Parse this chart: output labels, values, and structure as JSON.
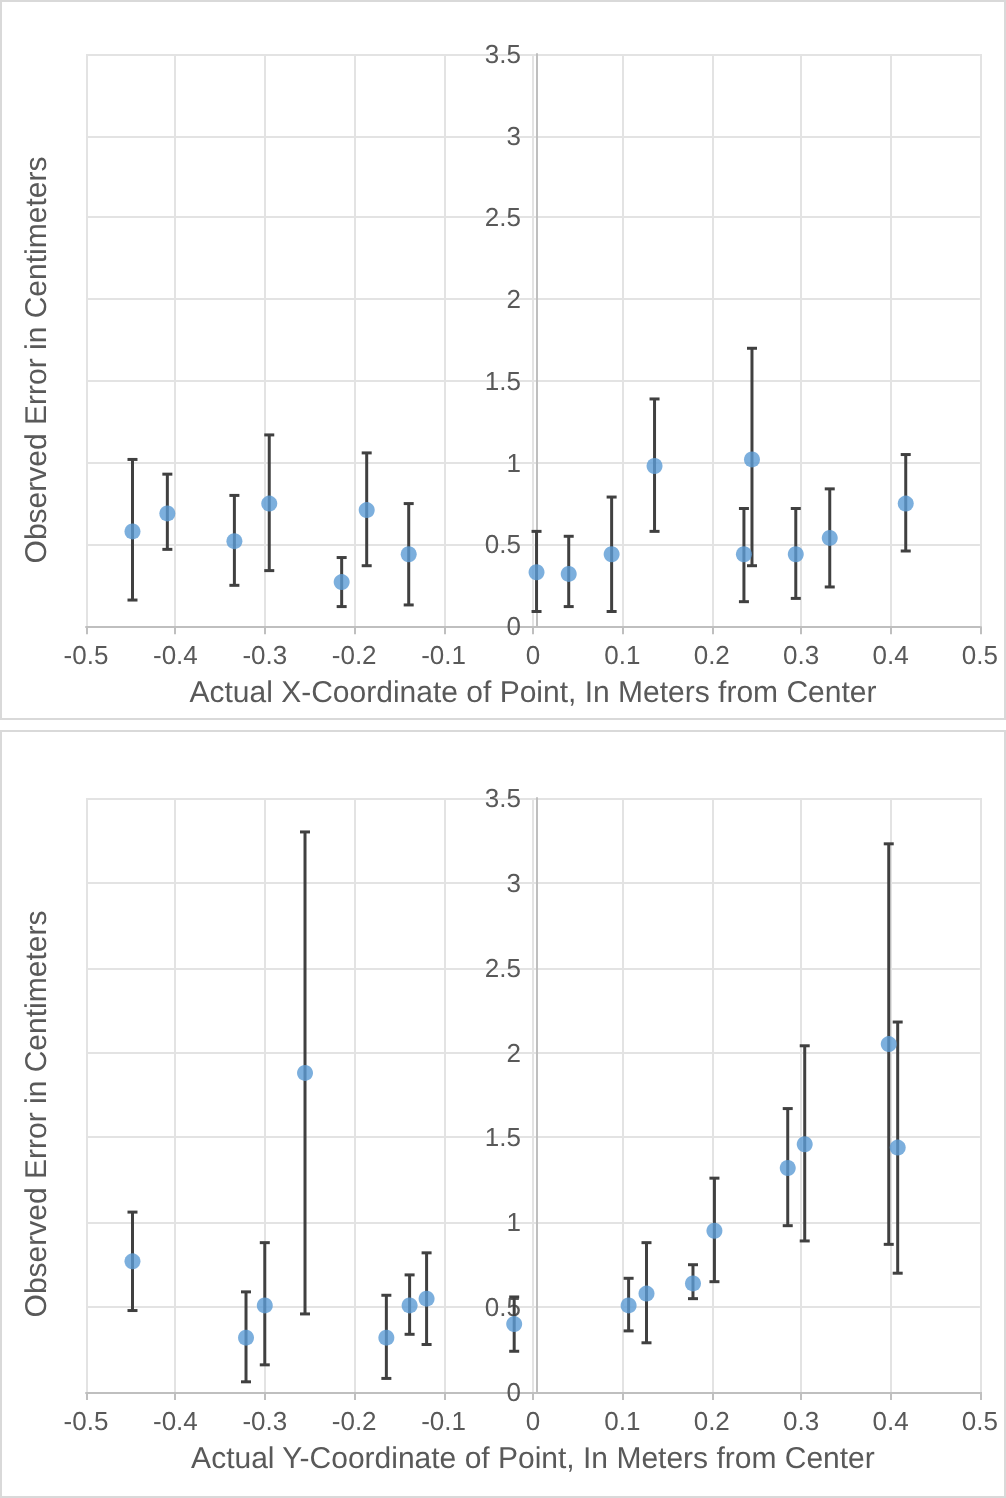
{
  "chart_data": [
    {
      "type": "scatter",
      "xlabel": "Actual X-Coordinate of Point, In Meters from Center",
      "ylabel": "Observed Error in Centimeters",
      "x": [
        -0.448,
        -0.409,
        -0.334,
        -0.295,
        -0.214,
        -0.186,
        -0.139,
        0.004,
        0.04,
        0.088,
        0.136,
        0.236,
        0.245,
        0.294,
        0.332,
        0.417
      ],
      "series": [
        {
          "color": "#5b9bd5",
          "values": [
            0.58,
            0.69,
            0.52,
            0.75,
            0.27,
            0.71,
            0.44,
            0.33,
            0.32,
            0.44,
            0.98,
            0.44,
            1.02,
            0.44,
            0.54,
            0.75
          ],
          "errors": [
            [
              0.16,
              1.02
            ],
            [
              0.47,
              0.93
            ],
            [
              0.25,
              0.8
            ],
            [
              0.34,
              1.17
            ],
            [
              0.12,
              0.42
            ],
            [
              0.37,
              1.06
            ],
            [
              0.13,
              0.75
            ],
            [
              0.09,
              0.58
            ],
            [
              0.12,
              0.55
            ],
            [
              0.09,
              0.79
            ],
            [
              0.58,
              1.39
            ],
            [
              0.15,
              0.72
            ],
            [
              0.37,
              1.7
            ],
            [
              0.17,
              0.72
            ],
            [
              0.24,
              0.84
            ],
            [
              0.46,
              1.05
            ]
          ]
        }
      ],
      "xlim": [
        -0.5,
        0.5
      ],
      "xticks": [
        -0.5,
        -0.4,
        -0.3,
        -0.2,
        -0.1,
        0,
        0.1,
        0.2,
        0.3,
        0.4,
        0.5
      ],
      "ylim": [
        0,
        3.5
      ],
      "yticks": [
        0,
        0.5,
        1,
        1.5,
        2,
        2.5,
        3,
        3.5
      ],
      "grid": true,
      "marker": "circle"
    },
    {
      "type": "scatter",
      "xlabel": "Actual Y-Coordinate of Point, In Meters from Center",
      "ylabel": "Observed Error in Centimeters",
      "x": [
        -0.448,
        -0.321,
        -0.3,
        -0.255,
        -0.164,
        -0.138,
        -0.119,
        -0.021,
        0.107,
        0.127,
        0.179,
        0.203,
        0.285,
        0.304,
        0.398,
        0.408
      ],
      "series": [
        {
          "color": "#5b9bd5",
          "values": [
            0.77,
            0.32,
            0.51,
            1.88,
            0.32,
            0.51,
            0.55,
            0.4,
            0.51,
            0.58,
            0.64,
            0.95,
            1.32,
            1.46,
            2.05,
            1.44
          ],
          "errors": [
            [
              0.48,
              1.06
            ],
            [
              0.06,
              0.59
            ],
            [
              0.16,
              0.88
            ],
            [
              0.46,
              3.3
            ],
            [
              0.08,
              0.57
            ],
            [
              0.34,
              0.69
            ],
            [
              0.28,
              0.82
            ],
            [
              0.24,
              0.56
            ],
            [
              0.36,
              0.67
            ],
            [
              0.29,
              0.88
            ],
            [
              0.55,
              0.75
            ],
            [
              0.65,
              1.26
            ],
            [
              0.98,
              1.67
            ],
            [
              0.89,
              2.04
            ],
            [
              0.87,
              3.23
            ],
            [
              0.7,
              2.18
            ]
          ]
        }
      ],
      "xlim": [
        -0.5,
        0.5
      ],
      "xticks": [
        -0.5,
        -0.4,
        -0.3,
        -0.2,
        -0.1,
        0,
        0.1,
        0.2,
        0.3,
        0.4,
        0.5
      ],
      "ylim": [
        0,
        3.5
      ],
      "yticks": [
        0,
        0.5,
        1,
        1.5,
        2,
        2.5,
        3,
        3.5
      ],
      "grid": true,
      "marker": "circle"
    }
  ]
}
